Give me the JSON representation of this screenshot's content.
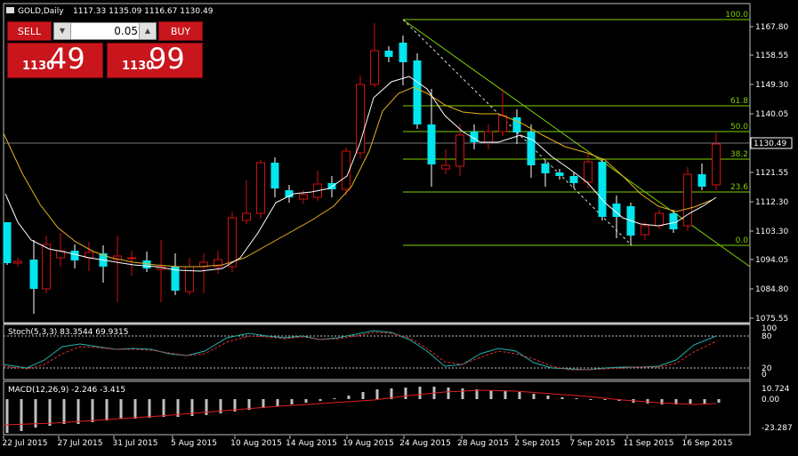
{
  "chart": {
    "title": "GOLD,Daily",
    "ohlc": "1117.33 1135.09 1116.67 1130.49",
    "price_labels": [
      "1167.80",
      "1158.55",
      "1149.30",
      "1140.05",
      "1130.49",
      "1121.55",
      "1112.30",
      "1103.30",
      "1094.05",
      "1084.80",
      "1075.55"
    ],
    "current_price_label": "1130.49",
    "fib_levels": [
      "100.0",
      "61.8",
      "50.0",
      "38.2",
      "23.6",
      "0.0"
    ],
    "date_labels": [
      "22 Jul 2015",
      "27 Jul 2015",
      "31 Jul 2015",
      "5 Aug 2015",
      "10 Aug 2015",
      "14 Aug 2015",
      "19 Aug 2015",
      "24 Aug 2015",
      "28 Aug 2015",
      "2 Sep 2015",
      "7 Sep 2015",
      "11 Sep 2015",
      "16 Sep 2015"
    ],
    "colors": {
      "bull": "#00e5ee",
      "bear": "#d01010",
      "grid": "#ffffff",
      "fib": "#7fd000",
      "ma_fast": "#ffffff",
      "ma_slow": "#e8b020"
    }
  },
  "stoch": {
    "label": "Stoch(5,3,3) 83.3544 69.9315",
    "levels": [
      "100",
      "80",
      "20",
      "0"
    ],
    "colors": {
      "main": "#20b2aa",
      "signal": "#e03030"
    }
  },
  "macd": {
    "label": "MACD(12,26,9) -2.246 -3.415",
    "levels": [
      "10.724",
      "0.00",
      "-23.287"
    ],
    "colors": {
      "hist": "#c0c0c0",
      "signal": "#e02020"
    }
  },
  "trade_panel": {
    "sell_label": "SELL",
    "buy_label": "BUY",
    "lot_value": "0.05",
    "sell_price_small": "1130",
    "sell_price_big": "49",
    "buy_price_small": "1130",
    "buy_price_big": "99",
    "spin_down_icon": "triangle-down-icon",
    "spin_up_icon": "triangle-up-icon",
    "window_icon": "chart-window-icon"
  }
}
